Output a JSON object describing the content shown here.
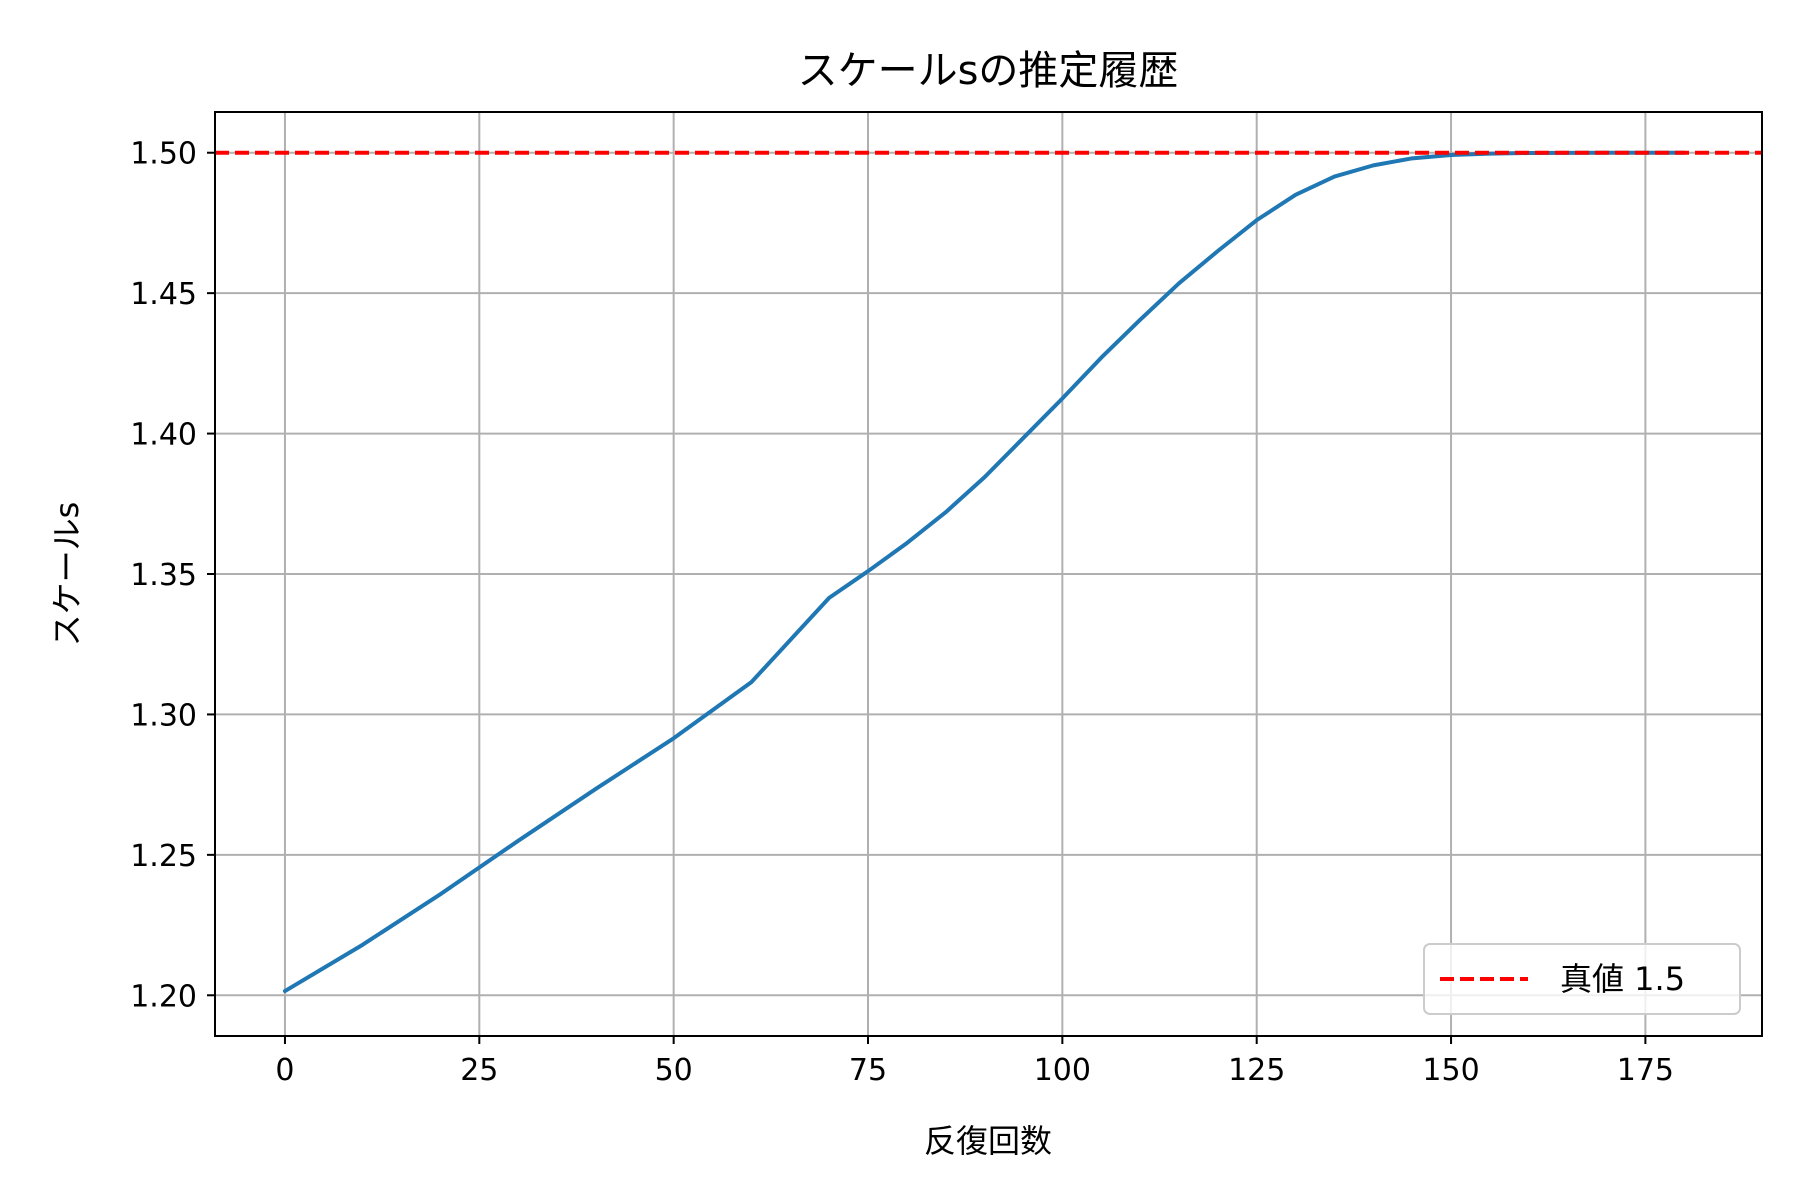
{
  "chart_data": {
    "type": "line",
    "title": "スケールsの推定履歴",
    "xlabel": "反復回数",
    "ylabel": "スケールs",
    "xlim": [
      -9,
      190
    ],
    "ylim": [
      1.1855,
      1.5145
    ],
    "grid": true,
    "xticks": [
      0,
      25,
      50,
      75,
      100,
      125,
      150,
      175
    ],
    "xtick_labels": [
      "0",
      "25",
      "50",
      "75",
      "100",
      "125",
      "150",
      "175"
    ],
    "yticks": [
      1.2,
      1.25,
      1.3,
      1.35,
      1.4,
      1.45,
      1.5
    ],
    "ytick_labels": [
      "1.20",
      "1.25",
      "1.30",
      "1.35",
      "1.40",
      "1.45",
      "1.50"
    ],
    "series": [
      {
        "name": "スケールs",
        "color": "#1f77b4",
        "style": "solid",
        "x": [
          0,
          10,
          20,
          30,
          40,
          50,
          60,
          70,
          75,
          80,
          85,
          90,
          95,
          100,
          105,
          110,
          115,
          120,
          125,
          130,
          135,
          140,
          145,
          150,
          155,
          160,
          170,
          180
        ],
        "y": [
          1.2015,
          1.218,
          1.236,
          1.255,
          1.2735,
          1.2915,
          1.3115,
          1.3415,
          1.351,
          1.361,
          1.372,
          1.3845,
          1.3985,
          1.4125,
          1.427,
          1.4405,
          1.4535,
          1.465,
          1.476,
          1.485,
          1.4915,
          1.4955,
          1.498,
          1.4992,
          1.4997,
          1.4999,
          1.5,
          1.5
        ]
      }
    ],
    "reference_line": {
      "value": 1.5,
      "color": "#ff0000",
      "style": "dashed",
      "label": "真値 1.5"
    },
    "legend": {
      "position": "bottom-right",
      "entries": [
        "真値 1.5"
      ]
    }
  }
}
